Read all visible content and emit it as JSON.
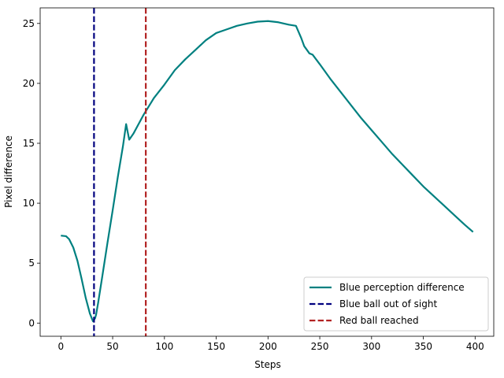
{
  "chart_data": {
    "type": "line",
    "xlabel": "Steps",
    "ylabel": "Pixel difference",
    "xlim": [
      -20,
      418
    ],
    "ylim": [
      -1.1,
      26.3
    ],
    "xticks": [
      0,
      50,
      100,
      150,
      200,
      250,
      300,
      350,
      400
    ],
    "yticks": [
      0,
      5,
      10,
      15,
      20,
      25
    ],
    "grid": false,
    "legend_position": "lower right",
    "series": [
      {
        "name": "Blue perception difference",
        "color": "#008080",
        "style": "solid",
        "x": [
          0,
          5,
          8,
          12,
          16,
          20,
          24,
          28,
          31,
          33,
          34,
          36,
          40,
          45,
          50,
          55,
          60,
          63,
          66,
          70,
          75,
          80,
          85,
          90,
          100,
          110,
          120,
          130,
          140,
          150,
          160,
          170,
          180,
          190,
          200,
          210,
          220,
          227,
          232,
          235,
          240,
          243,
          250,
          260,
          270,
          280,
          290,
          300,
          310,
          320,
          330,
          340,
          350,
          360,
          370,
          380,
          390,
          398
        ],
        "y": [
          7.3,
          7.25,
          7.0,
          6.3,
          5.2,
          3.7,
          2.1,
          0.8,
          0.15,
          0.4,
          0.7,
          1.7,
          3.9,
          6.7,
          9.4,
          12.2,
          14.8,
          16.6,
          15.3,
          15.8,
          16.6,
          17.4,
          18.1,
          18.8,
          19.9,
          21.1,
          22.0,
          22.8,
          23.6,
          24.2,
          24.5,
          24.8,
          25.0,
          25.15,
          25.2,
          25.1,
          24.9,
          24.8,
          23.8,
          23.1,
          22.5,
          22.4,
          21.6,
          20.4,
          19.3,
          18.2,
          17.1,
          16.1,
          15.1,
          14.1,
          13.2,
          12.3,
          11.4,
          10.6,
          9.8,
          9.0,
          8.2,
          7.6
        ]
      },
      {
        "name": "Blue ball out of sight",
        "color": "#00007f",
        "style": "dashed",
        "x": 32
      },
      {
        "name": "Red ball reached",
        "color": "#b22222",
        "style": "dashed",
        "x": 82
      }
    ]
  }
}
